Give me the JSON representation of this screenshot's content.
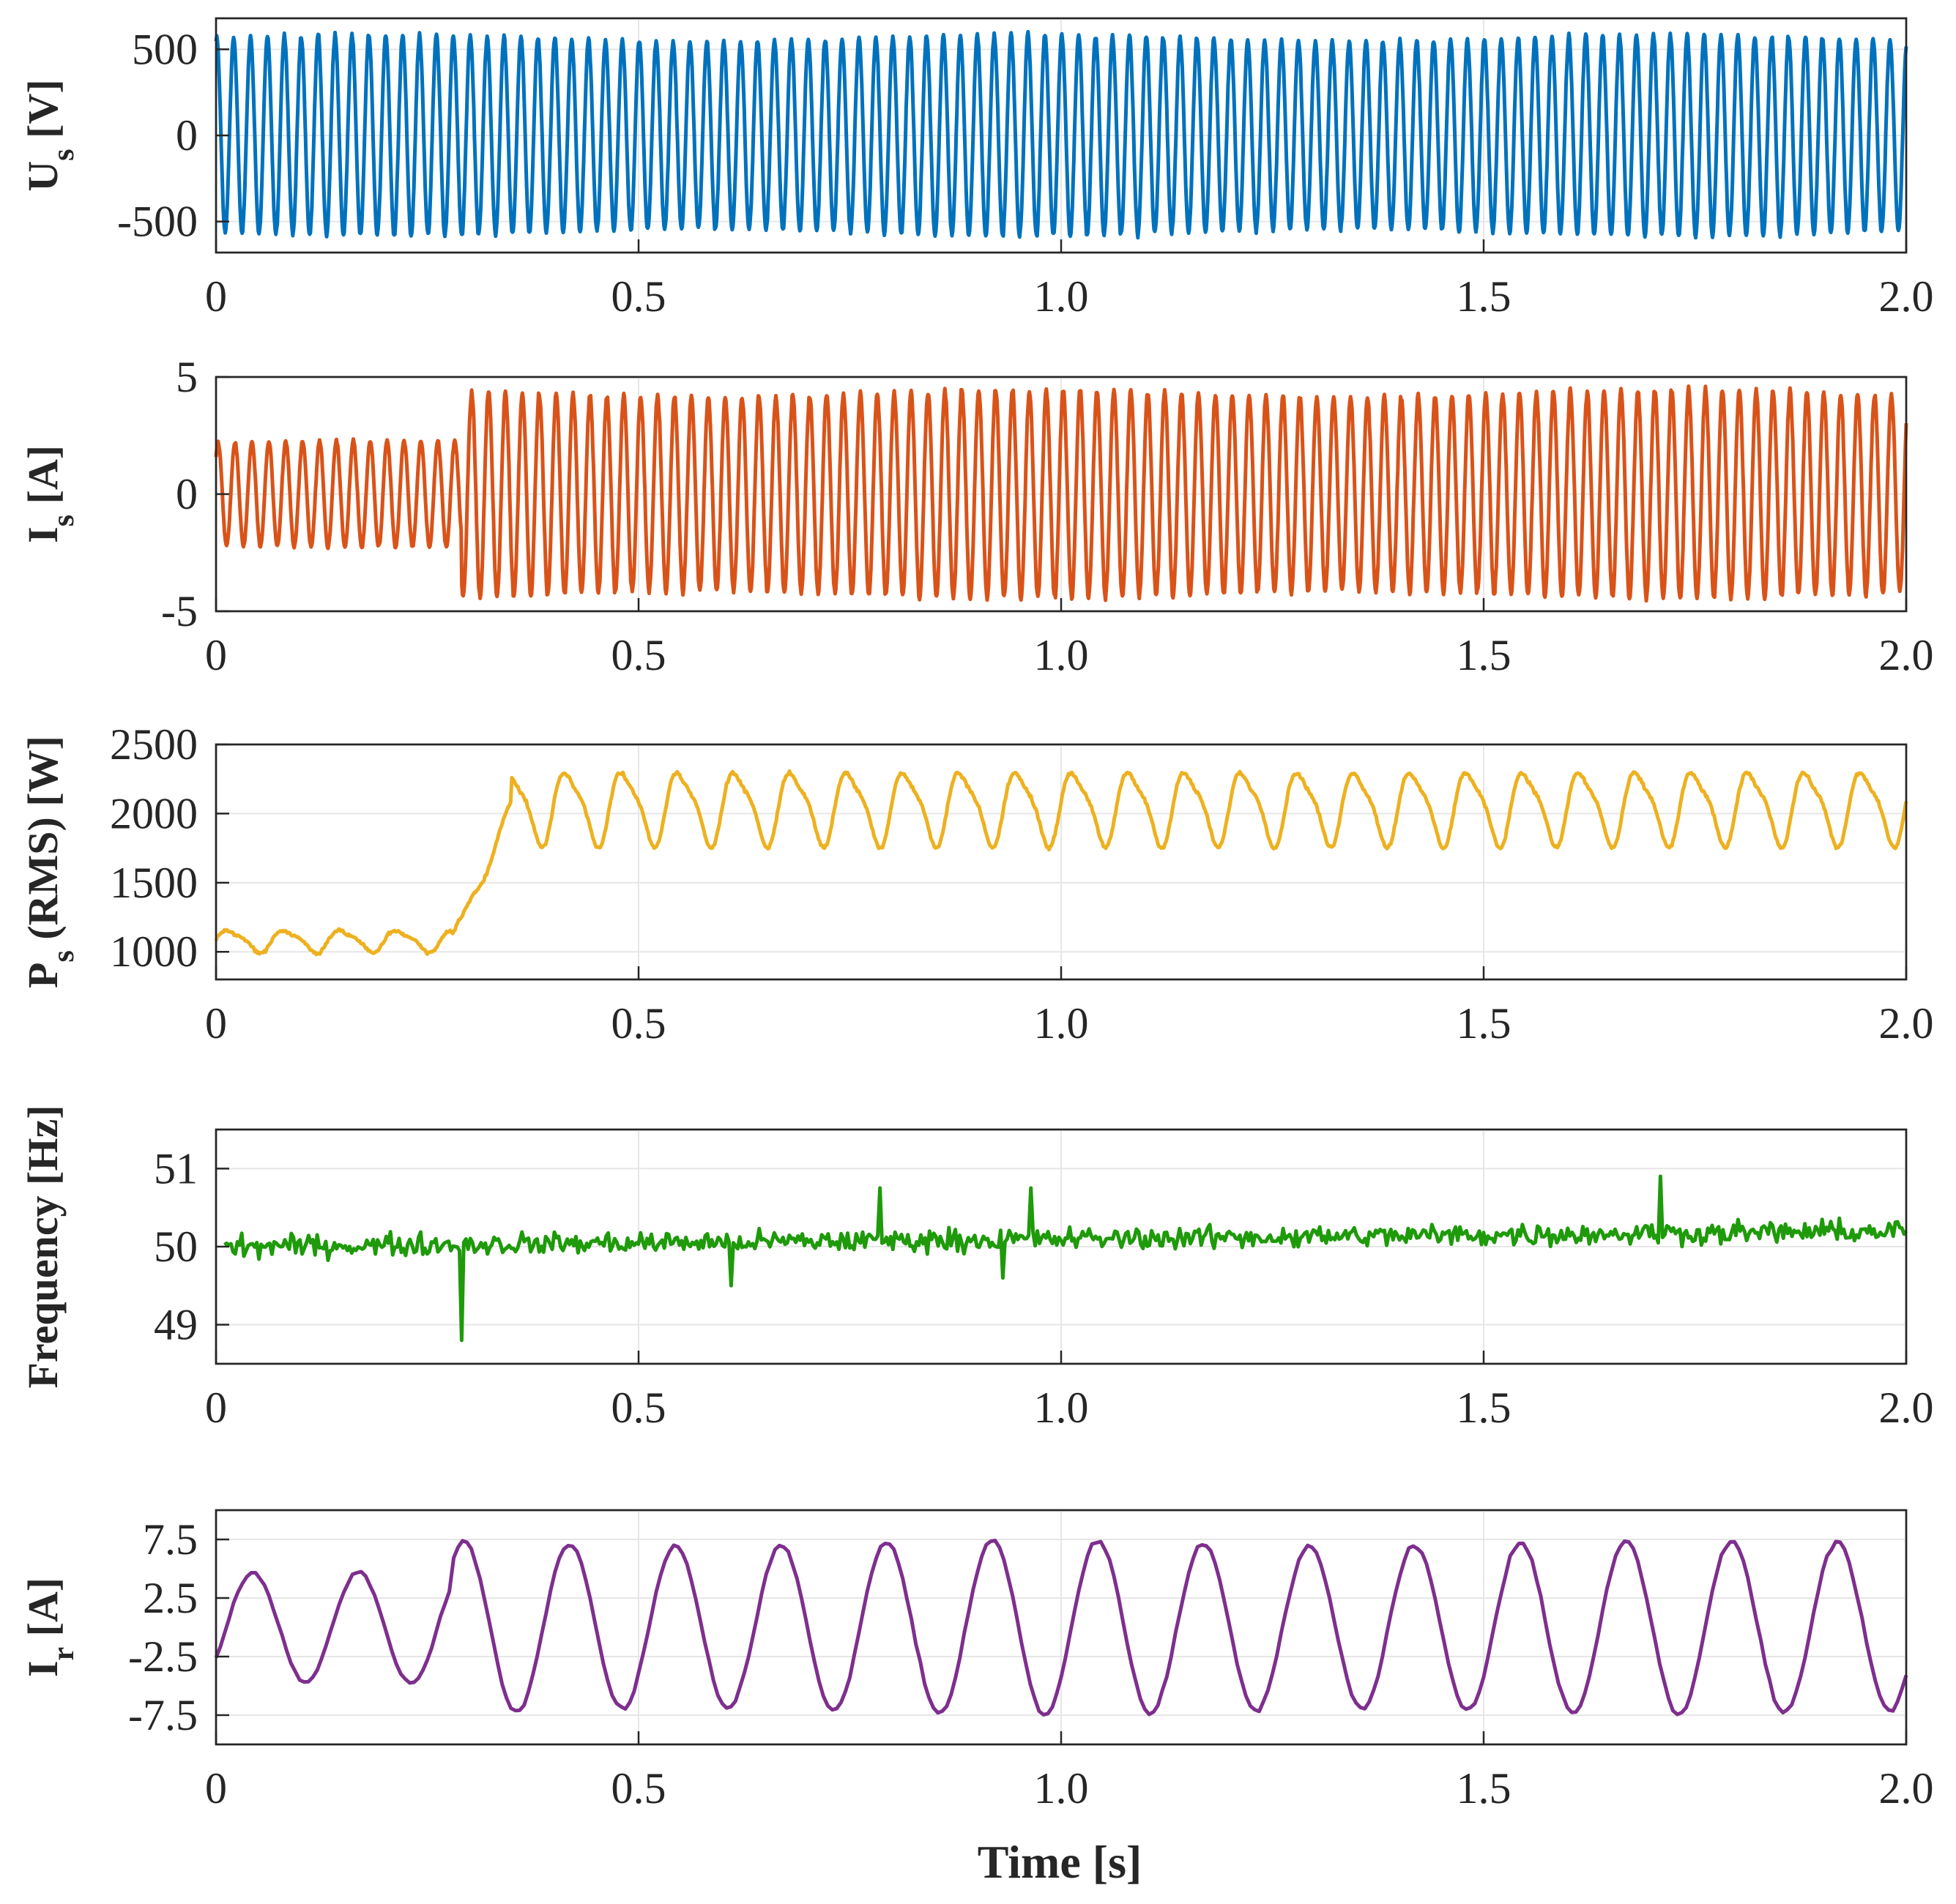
{
  "xlabel": "Time [s]",
  "chart_data": [
    {
      "type": "line",
      "id": "us",
      "ylabel_main": "U",
      "ylabel_sub": "s",
      "ylabel_unit": " [V]",
      "color": "#0072BD",
      "xlim": [
        0,
        2.0
      ],
      "ylim": [
        -680,
        680
      ],
      "yticks": [
        -500,
        0,
        500
      ],
      "ytick_labels": [
        "-500",
        "0",
        "500"
      ],
      "xticks": [
        0,
        0.5,
        1.0,
        1.5,
        2.0
      ],
      "xtick_labels": [
        "0",
        "0.5",
        "1.0",
        "1.5",
        "2.0"
      ],
      "signal": {
        "kind": "sine",
        "freq_hz": 50,
        "segments": [
          {
            "from": 0,
            "to": 2.0,
            "amplitude": 565
          }
        ],
        "phase_deg": 75,
        "noise_fraction": 0.04
      }
    },
    {
      "type": "line",
      "id": "is",
      "ylabel_main": "I",
      "ylabel_sub": "s",
      "ylabel_unit": " [A]",
      "color": "#D95319",
      "xlim": [
        0,
        2.0
      ],
      "ylim": [
        -5,
        5
      ],
      "yticks": [
        -5,
        0,
        5
      ],
      "ytick_labels": [
        "-5",
        "0",
        "5"
      ],
      "xticks": [
        0,
        0.5,
        1.0,
        1.5,
        2.0
      ],
      "xtick_labels": [
        "0",
        "0.5",
        "1.0",
        "1.5",
        "2.0"
      ],
      "signal": {
        "kind": "sine",
        "freq_hz": 50,
        "segments": [
          {
            "from": 0,
            "to": 0.29,
            "amplitude": 2.2
          },
          {
            "from": 0.29,
            "to": 2.0,
            "amplitude": 4.3
          }
        ],
        "phase_deg": 45,
        "noise_fraction": 0.05
      }
    },
    {
      "type": "line",
      "id": "ps",
      "ylabel_main": "P",
      "ylabel_sub": "s",
      "ylabel_unit": " (RMS) [W]",
      "color": "#EDB120",
      "xlim": [
        0,
        2.0
      ],
      "ylim": [
        800,
        2500
      ],
      "yticks": [
        1000,
        1500,
        2000,
        2500
      ],
      "ytick_labels": [
        "1000",
        "1500",
        "2000",
        "2500"
      ],
      "xticks": [
        0,
        0.5,
        1.0,
        1.5,
        2.0
      ],
      "xtick_labels": [
        "0",
        "0.5",
        "1.0",
        "1.5",
        "2.0"
      ],
      "signal": {
        "kind": "power",
        "ripple_hz": 15,
        "segments": [
          {
            "from": 0,
            "to": 0.28,
            "mean": 1080,
            "ripple": 75
          },
          {
            "from": 0.28,
            "to": 0.35,
            "mean": 1900,
            "ripple": 60
          },
          {
            "from": 0.35,
            "to": 2.0,
            "mean": 2050,
            "ripple": 250
          }
        ],
        "noise": 18
      }
    },
    {
      "type": "line",
      "id": "freq",
      "ylabel_main": "Frequency [Hz]",
      "ylabel_sub": "",
      "ylabel_unit": "",
      "color": "#1E9A0A",
      "xlim": [
        0,
        2.0
      ],
      "ylim": [
        48.5,
        51.5
      ],
      "yticks": [
        49,
        50,
        51
      ],
      "ytick_labels": [
        "49",
        "50",
        "51"
      ],
      "xticks": [
        0,
        0.5,
        1.0,
        1.5,
        2.0
      ],
      "xtick_labels": [
        "0",
        "0.5",
        "1.0",
        "1.5",
        "2.0"
      ],
      "signal": {
        "kind": "noise",
        "start": 0.01,
        "mean_start": 50.0,
        "mean_end": 50.2,
        "spread": 0.16,
        "spikes": [
          {
            "t": 0.29,
            "value": 48.8
          },
          {
            "t": 0.785,
            "value": 50.75
          },
          {
            "t": 0.965,
            "value": 50.75
          },
          {
            "t": 1.71,
            "value": 50.9
          },
          {
            "t": 0.61,
            "value": 49.5
          },
          {
            "t": 0.93,
            "value": 49.6
          }
        ]
      }
    },
    {
      "type": "line",
      "id": "ir",
      "ylabel_main": "I",
      "ylabel_sub": "r",
      "ylabel_unit": " [A]",
      "color": "#7E2F8E",
      "xlim": [
        0,
        2.0
      ],
      "ylim": [
        -10,
        10
      ],
      "yticks": [
        -7.5,
        -2.5,
        2.5,
        7.5
      ],
      "ytick_labels": [
        "-7.5",
        "-2.5",
        "2.5",
        "7.5"
      ],
      "xticks": [
        0,
        0.5,
        1.0,
        1.5,
        2.0
      ],
      "xtick_labels": [
        "0",
        "0.5",
        "1.0",
        "1.5",
        "2.0"
      ],
      "signal": {
        "kind": "sine",
        "freq_hz": 8,
        "segments": [
          {
            "from": 0,
            "to": 0.28,
            "amplitude": 4.6
          },
          {
            "from": 0.28,
            "to": 2.0,
            "amplitude": 7.2
          }
        ],
        "phase_deg": -35,
        "noise_fraction": 0.04
      }
    }
  ]
}
